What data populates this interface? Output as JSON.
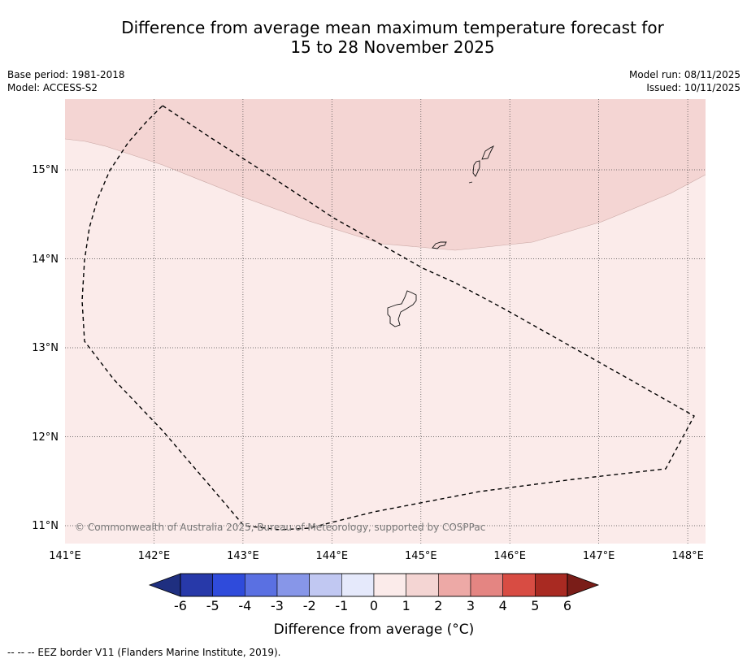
{
  "title": {
    "line1": "Difference from average mean maximum temperature forecast for",
    "line2": "15 to 28 November 2025"
  },
  "meta": {
    "base_period": "Base period: 1981-2018",
    "model": "Model: ACCESS-S2",
    "model_run": "Model run: 08/11/2025",
    "issued": "Issued: 10/11/2025"
  },
  "map": {
    "lon_range": [
      141,
      148.2
    ],
    "lat_range": [
      10.8,
      15.8
    ],
    "lon_ticks": [
      "141°E",
      "142°E",
      "143°E",
      "144°E",
      "145°E",
      "146°E",
      "147°E",
      "148°E"
    ],
    "lat_ticks": [
      "15°N",
      "14°N",
      "13°N",
      "12°N",
      "11°N"
    ],
    "copyright": "© Commonwealth of Australia 2025, Bureau of Meteorology, supported by COSPPac",
    "colors": {
      "band_0_1": "#fbebea",
      "band_1_2": "#f4d5d3",
      "eez_border": "#000000"
    }
  },
  "colorbar": {
    "label": "Difference from average (°C)",
    "ticks": [
      "-6",
      "-5",
      "-4",
      "-3",
      "-2",
      "-1",
      "0",
      "1",
      "2",
      "3",
      "4",
      "5",
      "6"
    ],
    "colors": [
      "#2739a9",
      "#2f4bdb",
      "#5a70e2",
      "#8796e8",
      "#c1c8f2",
      "#e5e9fb",
      "#fbebea",
      "#f4d5d3",
      "#eda9a6",
      "#e48582",
      "#d84c43",
      "#a92a22"
    ],
    "under_color": "#1f2f80",
    "over_color": "#7a1d18"
  },
  "footnote": "-- -- -- EEZ border V11 (Flanders Marine Institute, 2019)."
}
